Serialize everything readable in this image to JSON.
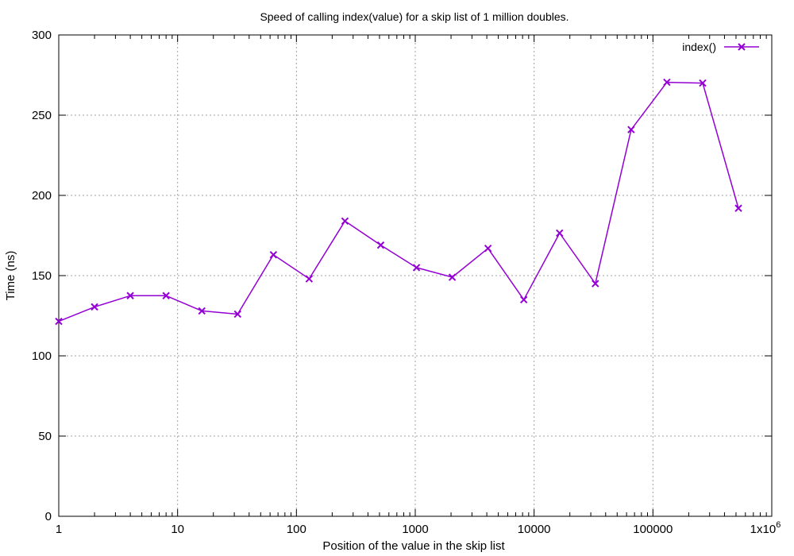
{
  "chart_data": {
    "type": "line",
    "title": "Speed of calling index(value) for a skip list of 1 million doubles.",
    "xlabel": "Position of the value in the skip list",
    "ylabel": "Time (ns)",
    "x_scale": "log10",
    "xlim": [
      1,
      1000000
    ],
    "ylim": [
      0,
      300
    ],
    "grid": true,
    "legend_position": "top-right",
    "x_ticks": [
      {
        "value": 1,
        "label": "1"
      },
      {
        "value": 10,
        "label": "10"
      },
      {
        "value": 100,
        "label": "100"
      },
      {
        "value": 1000,
        "label": "1000"
      },
      {
        "value": 10000,
        "label": "10000"
      },
      {
        "value": 100000,
        "label": "100000"
      },
      {
        "value": 1000000,
        "label": "1x10",
        "sup": "6"
      }
    ],
    "y_ticks": [
      {
        "value": 0,
        "label": "0"
      },
      {
        "value": 50,
        "label": "50"
      },
      {
        "value": 100,
        "label": "100"
      },
      {
        "value": 150,
        "label": "150"
      },
      {
        "value": 200,
        "label": "200"
      },
      {
        "value": 250,
        "label": "250"
      },
      {
        "value": 300,
        "label": "300"
      }
    ],
    "series": [
      {
        "name": "index()",
        "color": "#9400d3",
        "x": [
          1,
          2,
          4,
          8,
          16,
          32,
          64,
          128,
          256,
          512,
          1024,
          2048,
          4096,
          8192,
          16384,
          32768,
          65536,
          131072,
          262144,
          524288
        ],
        "y": [
          121.5,
          130.5,
          137.5,
          137.5,
          128,
          126,
          163,
          148,
          184,
          169,
          155,
          149,
          167,
          135,
          176.5,
          145,
          241,
          270.5,
          270,
          192
        ]
      }
    ]
  }
}
